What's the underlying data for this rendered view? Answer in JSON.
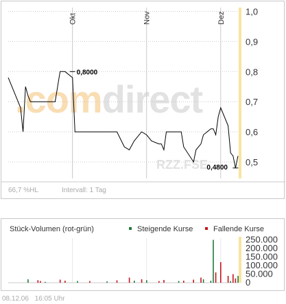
{
  "watermark": {
    "brand_a": ".com",
    "brand_b": "direct",
    "symbol": "RZZ.FSE"
  },
  "colors": {
    "brand_orange": "#f9ddb3",
    "brand_gray": "#e2e2e2",
    "price_line": "#000000",
    "grid": "#c8c8c8",
    "year_band": "#f8e4a0",
    "rising": "#1f7a3c",
    "falling": "#c4151c",
    "axis_text": "#333333",
    "muted_text": "#aaaaaa"
  },
  "price_panel": {
    "footer_left": "66,7 %HL",
    "footer_interval": "Intervall: 1 Tag"
  },
  "volume_panel": {
    "title": "Stück-Volumen (rot-grün)",
    "legend_rising": "Steigende Kurse",
    "legend_falling": "Fallende Kurse"
  },
  "page_footer": {
    "date": "08.12.06",
    "time": "16:05 Uhr"
  },
  "chart_data": [
    {
      "type": "line",
      "y_ticks": [
        "1,0",
        "0,9",
        "0,8",
        "0,7",
        "0,6",
        "0,5"
      ],
      "y_tick_values": [
        1.0,
        0.9,
        0.8,
        0.7,
        0.6,
        0.5
      ],
      "ylim": [
        0.45,
        1.0
      ],
      "x_range": [
        "2006-09-06",
        "2006-12-08"
      ],
      "month_labels": [
        {
          "label": "Okt",
          "date": "2006-10-02"
        },
        {
          "label": "Nov",
          "date": "2006-11-01"
        },
        {
          "label": "Dez",
          "date": "2006-12-01"
        }
      ],
      "annotations": [
        {
          "text": "0,8000",
          "x": "2006-10-02",
          "y": 0.8
        },
        {
          "text": "0,4800",
          "x": "2006-12-07",
          "y": 0.48
        }
      ],
      "series": [
        {
          "x": [
            "2006-09-06",
            "2006-09-08",
            "2006-09-11",
            "2006-09-12",
            "2006-09-13",
            "2006-09-14",
            "2006-09-15",
            "2006-09-18",
            "2006-09-19",
            "2006-09-21",
            "2006-09-25",
            "2006-09-27",
            "2006-09-29",
            "2006-10-02",
            "2006-10-03",
            "2006-10-04",
            "2006-10-05",
            "2006-10-06",
            "2006-10-09",
            "2006-10-12",
            "2006-10-16",
            "2006-10-20",
            "2006-10-23",
            "2006-10-25",
            "2006-10-27",
            "2006-10-30",
            "2006-11-01",
            "2006-11-03",
            "2006-11-06",
            "2006-11-07",
            "2006-11-08",
            "2006-11-09",
            "2006-11-10",
            "2006-11-13",
            "2006-11-14",
            "2006-11-15",
            "2006-11-16",
            "2006-11-20",
            "2006-11-21",
            "2006-11-23",
            "2006-11-24",
            "2006-11-27",
            "2006-11-28",
            "2006-11-29",
            "2006-11-30",
            "2006-12-01",
            "2006-12-04",
            "2006-12-05",
            "2006-12-06",
            "2006-12-07",
            "2006-12-08"
          ],
          "y": [
            0.78,
            0.74,
            0.68,
            0.6,
            0.75,
            0.72,
            0.7,
            0.7,
            0.7,
            0.7,
            0.7,
            0.8,
            0.8,
            0.78,
            0.6,
            0.6,
            0.6,
            0.6,
            0.6,
            0.6,
            0.6,
            0.6,
            0.55,
            0.54,
            0.57,
            0.6,
            0.59,
            0.57,
            0.56,
            0.56,
            0.54,
            0.6,
            0.6,
            0.6,
            0.6,
            0.6,
            0.55,
            0.5,
            0.54,
            0.56,
            0.59,
            0.61,
            0.61,
            0.59,
            0.65,
            0.68,
            0.62,
            0.53,
            0.52,
            0.48,
            0.52
          ]
        }
      ]
    },
    {
      "type": "bar",
      "y_ticks": [
        "250.000",
        "200.000",
        "150.000",
        "100.000",
        "50.000",
        "0"
      ],
      "ylim": [
        0,
        260000
      ],
      "series": [
        {
          "name": "Steigende Kurse",
          "values": [
            {
              "x": "2006-09-14",
              "v": 20000
            },
            {
              "x": "2006-09-21",
              "v": 5000
            },
            {
              "x": "2006-10-04",
              "v": 10000
            },
            {
              "x": "2006-10-16",
              "v": 8000
            },
            {
              "x": "2006-10-27",
              "v": 12000
            },
            {
              "x": "2006-11-01",
              "v": 15000
            },
            {
              "x": "2006-11-14",
              "v": 10000
            },
            {
              "x": "2006-11-24",
              "v": 20000
            },
            {
              "x": "2006-11-27",
              "v": 12000
            },
            {
              "x": "2006-11-28",
              "v": 250000
            },
            {
              "x": "2006-12-05",
              "v": 10000
            },
            {
              "x": "2006-12-08",
              "v": 40000
            }
          ]
        },
        {
          "name": "Fallende Kurse",
          "values": [
            {
              "x": "2006-09-18",
              "v": 15000
            },
            {
              "x": "2006-09-19",
              "v": 10000
            },
            {
              "x": "2006-09-27",
              "v": 18000
            },
            {
              "x": "2006-09-29",
              "v": 12000
            },
            {
              "x": "2006-10-09",
              "v": 10000
            },
            {
              "x": "2006-10-20",
              "v": 14000
            },
            {
              "x": "2006-10-25",
              "v": 30000
            },
            {
              "x": "2006-10-30",
              "v": 20000
            },
            {
              "x": "2006-11-06",
              "v": 10000
            },
            {
              "x": "2006-11-08",
              "v": 16000
            },
            {
              "x": "2006-11-16",
              "v": 12000
            },
            {
              "x": "2006-11-20",
              "v": 18000
            },
            {
              "x": "2006-11-23",
              "v": 30000
            },
            {
              "x": "2006-11-29",
              "v": 60000
            },
            {
              "x": "2006-12-01",
              "v": 120000
            },
            {
              "x": "2006-12-04",
              "v": 40000
            },
            {
              "x": "2006-12-06",
              "v": 50000
            },
            {
              "x": "2006-12-07",
              "v": 25000
            }
          ]
        }
      ]
    }
  ]
}
